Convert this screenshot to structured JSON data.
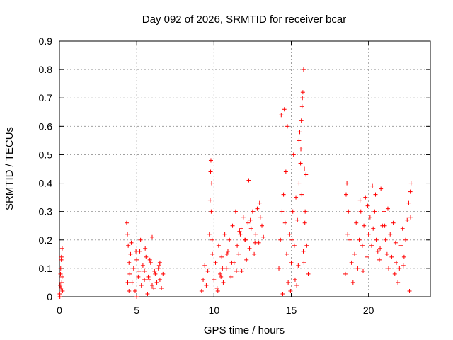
{
  "chart_data": {
    "type": "scatter",
    "title": "Day 092 of 2026, SRMTID for receiver bcar",
    "xlabel": "GPS time / hours",
    "ylabel": "SRMTID / TECUs",
    "xlim": [
      0,
      24
    ],
    "ylim": [
      0,
      0.9
    ],
    "xticks": [
      0,
      5,
      10,
      15,
      20
    ],
    "yticks": [
      0,
      0.1,
      0.2,
      0.3,
      0.4,
      0.5,
      0.6,
      0.7,
      0.8,
      0.9
    ],
    "ytick_labels": [
      "0",
      "0.1",
      "0.2",
      "0.3",
      "0.4",
      "0.5",
      "0.6",
      "0.7",
      "0.8",
      "0.9"
    ],
    "grid": true,
    "series": [
      {
        "name": "SRMTID",
        "color": "#ff0000",
        "marker": "plus",
        "x": [
          0.02,
          0.05,
          0.07,
          0.1,
          0.12,
          0.15,
          0.18,
          0.2,
          0.03,
          0.08,
          0.13,
          0.17,
          4.35,
          4.4,
          4.45,
          4.5,
          4.55,
          4.6,
          4.7,
          4.8,
          4.9,
          5.0,
          5.1,
          5.2,
          5.3,
          5.4,
          5.5,
          5.6,
          5.7,
          5.8,
          5.9,
          6.0,
          6.1,
          6.2,
          6.3,
          6.4,
          6.5,
          6.6,
          6.7,
          4.42,
          4.65,
          4.95,
          5.25,
          5.55,
          5.85,
          6.15,
          6.45,
          4.5,
          5.0,
          5.5,
          6.0,
          6.5,
          5.15,
          5.75,
          9.2,
          9.3,
          9.4,
          9.5,
          9.6,
          9.7,
          9.75,
          9.8,
          9.85,
          9.9,
          10.0,
          10.1,
          10.2,
          10.3,
          10.4,
          10.5,
          10.6,
          10.7,
          10.8,
          10.9,
          11.0,
          11.1,
          11.2,
          11.3,
          11.4,
          11.5,
          11.6,
          11.7,
          11.8,
          11.9,
          12.0,
          12.1,
          12.2,
          12.3,
          12.4,
          12.5,
          12.6,
          12.7,
          12.8,
          12.9,
          13.0,
          13.1,
          13.2,
          9.78,
          9.82,
          9.88,
          10.25,
          10.55,
          10.85,
          11.15,
          11.45,
          11.75,
          12.05,
          12.35,
          12.65,
          12.95,
          12.25,
          11.65,
          10.45,
          14.2,
          14.3,
          14.4,
          14.5,
          14.6,
          14.7,
          14.8,
          14.9,
          15.0,
          15.1,
          15.2,
          15.3,
          15.4,
          15.5,
          15.55,
          15.6,
          15.65,
          15.7,
          15.75,
          15.8,
          15.85,
          15.9,
          16.0,
          16.1,
          14.35,
          14.55,
          14.75,
          14.95,
          15.15,
          15.35,
          15.45,
          15.5,
          15.62,
          15.68,
          15.72,
          15.78,
          15.82,
          15.88,
          14.45,
          14.65,
          15.05,
          15.25,
          15.95,
          18.5,
          18.6,
          18.7,
          18.8,
          18.9,
          19.0,
          19.1,
          19.2,
          19.3,
          19.4,
          19.5,
          19.6,
          19.7,
          19.8,
          19.9,
          20.0,
          20.1,
          20.2,
          20.3,
          20.4,
          20.5,
          20.6,
          20.7,
          20.8,
          20.9,
          21.0,
          21.1,
          21.2,
          21.3,
          21.4,
          21.5,
          21.6,
          21.7,
          21.8,
          21.9,
          22.0,
          22.1,
          22.2,
          22.3,
          22.4,
          22.5,
          22.6,
          22.7,
          22.75,
          18.55,
          18.65,
          19.45,
          19.95,
          20.45,
          20.75,
          21.25,
          21.75,
          22.25,
          22.65,
          22.72,
          20.25,
          19.65,
          21.05
        ],
        "y": [
          0.01,
          0.04,
          0.08,
          0.03,
          0.13,
          0.05,
          0.17,
          0.02,
          0.0,
          0.1,
          0.14,
          0.07,
          0.26,
          0.22,
          0.18,
          0.12,
          0.08,
          0.15,
          0.05,
          0.1,
          0.02,
          0.13,
          0.07,
          0.16,
          0.04,
          0.11,
          0.09,
          0.14,
          0.01,
          0.06,
          0.12,
          0.21,
          0.03,
          0.08,
          0.05,
          0.1,
          0.06,
          0.03,
          0.08,
          0.05,
          0.19,
          0.16,
          0.2,
          0.17,
          0.13,
          0.09,
          0.11,
          0.02,
          0.0,
          0.06,
          0.04,
          0.12,
          0.09,
          0.07,
          0.02,
          0.06,
          0.11,
          0.04,
          0.09,
          0.22,
          0.34,
          0.48,
          0.4,
          0.15,
          0.06,
          0.12,
          0.03,
          0.18,
          0.08,
          0.14,
          0.05,
          0.22,
          0.1,
          0.16,
          0.2,
          0.07,
          0.25,
          0.12,
          0.3,
          0.18,
          0.15,
          0.22,
          0.09,
          0.28,
          0.2,
          0.13,
          0.26,
          0.17,
          0.24,
          0.3,
          0.15,
          0.22,
          0.31,
          0.19,
          0.28,
          0.25,
          0.21,
          0.44,
          0.3,
          0.2,
          0.02,
          0.1,
          0.15,
          0.12,
          0.09,
          0.24,
          0.2,
          0.27,
          0.19,
          0.33,
          0.41,
          0.23,
          0.07,
          0.1,
          0.2,
          0.3,
          0.36,
          0.26,
          0.15,
          0.05,
          0.22,
          0.12,
          0.3,
          0.18,
          0.35,
          0.27,
          0.4,
          0.58,
          0.47,
          0.62,
          0.67,
          0.72,
          0.8,
          0.45,
          0.3,
          0.18,
          0.08,
          0.64,
          0.66,
          0.6,
          0.02,
          0.5,
          0.04,
          0.11,
          0.55,
          0.52,
          0.36,
          0.7,
          0.16,
          0.12,
          0.26,
          0.01,
          0.44,
          0.2,
          0.06,
          0.43,
          0.08,
          0.4,
          0.3,
          0.2,
          0.12,
          0.05,
          0.15,
          0.26,
          0.1,
          0.2,
          0.3,
          0.18,
          0.25,
          0.35,
          0.14,
          0.22,
          0.28,
          0.18,
          0.24,
          0.3,
          0.2,
          0.16,
          0.13,
          0.38,
          0.25,
          0.3,
          0.2,
          0.15,
          0.1,
          0.22,
          0.14,
          0.26,
          0.08,
          0.12,
          0.05,
          0.1,
          0.18,
          0.24,
          0.14,
          0.2,
          0.27,
          0.33,
          0.37,
          0.4,
          0.36,
          0.22,
          0.34,
          0.32,
          0.36,
          0.17,
          0.31,
          0.19,
          0.11,
          0.02,
          0.28,
          0.39,
          0.09,
          0.25
        ]
      }
    ]
  }
}
